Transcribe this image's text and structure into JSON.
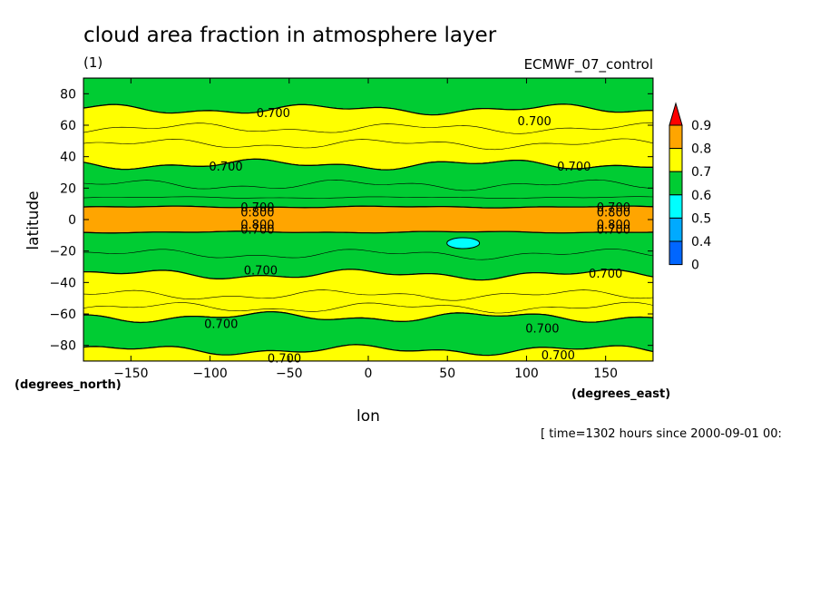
{
  "chart_data": {
    "type": "contour",
    "title": "cloud area fraction in atmosphere layer",
    "subtitle_left": "(1)",
    "subtitle_right": "ECMWF_07_control",
    "xlabel": "lon",
    "ylabel": "latitude",
    "x_unit": "(degrees_east)",
    "y_unit": "(degrees_north)",
    "time_label": "[ time=1302 hours since 2000-09-01 00:",
    "xlim": [
      -180,
      180
    ],
    "ylim": [
      -90,
      90
    ],
    "x_ticks": [
      -150,
      -100,
      -50,
      0,
      50,
      100,
      150
    ],
    "y_ticks": [
      80,
      60,
      40,
      20,
      0,
      -20,
      -40,
      -60,
      -80
    ],
    "colorbar": {
      "levels": [
        0,
        0.4,
        0.5,
        0.6,
        0.7,
        0.8,
        0.9
      ],
      "labels": [
        "0",
        "0.4",
        "0.5",
        "0.6",
        "0.7",
        "0.8",
        "0.9"
      ],
      "colors": [
        "#0066ff",
        "#00aaff",
        "#00ffff",
        "#00cc33",
        "#ffff00",
        "#ffa500",
        "#ff0000"
      ]
    },
    "zonal_bands": [
      {
        "lat_min": 70,
        "lat_max": 90,
        "level": 0.6
      },
      {
        "lat_min": 35,
        "lat_max": 70,
        "level": 0.7
      },
      {
        "lat_min": 8,
        "lat_max": 35,
        "level": 0.6
      },
      {
        "lat_min": -8,
        "lat_max": 8,
        "level": 0.8
      },
      {
        "lat_min": -35,
        "lat_max": -8,
        "level": 0.6
      },
      {
        "lat_min": -62,
        "lat_max": -35,
        "level": 0.7
      },
      {
        "lat_min": -83,
        "lat_max": -62,
        "level": 0.6
      },
      {
        "lat_min": -90,
        "lat_max": -83,
        "level": 0.7
      }
    ],
    "patches": [
      {
        "lon": 60,
        "lat": -15,
        "level": 0.5
      }
    ],
    "contour_labels": [
      {
        "text": "0.700",
        "lon": -60,
        "lat": 68
      },
      {
        "text": "0.700",
        "lon": 105,
        "lat": 63
      },
      {
        "text": "0.700",
        "lon": -90,
        "lat": 34
      },
      {
        "text": "0.700",
        "lon": 130,
        "lat": 34
      },
      {
        "text": "0.700",
        "lon": -70,
        "lat": 8
      },
      {
        "text": "0.800",
        "lon": -70,
        "lat": 5
      },
      {
        "text": "0.800",
        "lon": -70,
        "lat": -3
      },
      {
        "text": "0.700",
        "lon": -70,
        "lat": -6
      },
      {
        "text": "0.700",
        "lon": 155,
        "lat": 8
      },
      {
        "text": "0.800",
        "lon": 155,
        "lat": 5
      },
      {
        "text": "0.800",
        "lon": 155,
        "lat": -3
      },
      {
        "text": "0.700",
        "lon": 155,
        "lat": -6
      },
      {
        "text": "0.700",
        "lon": -68,
        "lat": -32
      },
      {
        "text": "0.700",
        "lon": 150,
        "lat": -34
      },
      {
        "text": "0.700",
        "lon": -93,
        "lat": -66
      },
      {
        "text": "0.700",
        "lon": 110,
        "lat": -69
      },
      {
        "text": "0.700",
        "lon": -53,
        "lat": -88
      },
      {
        "text": "0.700",
        "lon": 120,
        "lat": -86
      }
    ]
  }
}
